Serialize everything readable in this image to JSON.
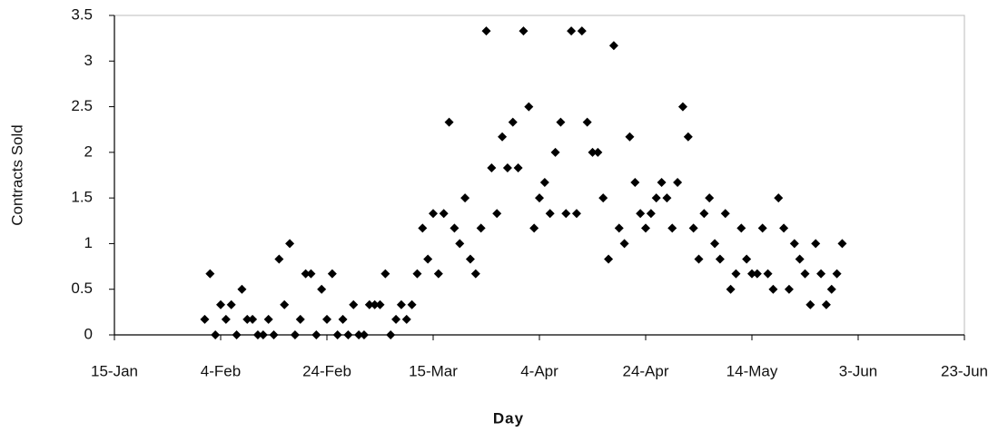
{
  "chart_data": {
    "type": "scatter",
    "xlabel": "Day",
    "ylabel": "Contracts Sold",
    "x": [
      32,
      33,
      34,
      35,
      36,
      37,
      38,
      39,
      40,
      41,
      42,
      43,
      44,
      45,
      46,
      47,
      48,
      49,
      50,
      51,
      52,
      53,
      54,
      55,
      56,
      57,
      58,
      59,
      60,
      61,
      62,
      63,
      64,
      65,
      66,
      67,
      68,
      69,
      70,
      71,
      72,
      73,
      74,
      75,
      76,
      77,
      78,
      79,
      80,
      81,
      82,
      83,
      84,
      85,
      86,
      87,
      88,
      89,
      90,
      91,
      92,
      93,
      94,
      95,
      96,
      97,
      98,
      99,
      100,
      101,
      102,
      103,
      104,
      105,
      106,
      107,
      108,
      109,
      110,
      111,
      112,
      113,
      114,
      115,
      116,
      117,
      118,
      119,
      120,
      121,
      122,
      123,
      124,
      125,
      126,
      127,
      128,
      129,
      130,
      131,
      132,
      133,
      134,
      135,
      136,
      137,
      138,
      139,
      140,
      141,
      142,
      143,
      144,
      145,
      146,
      147,
      148,
      149,
      150,
      151,
      152
    ],
    "values": [
      0.17,
      0.67,
      0,
      0.33,
      0.17,
      0.33,
      0,
      0.5,
      0.17,
      0.17,
      0,
      0,
      0.17,
      0,
      0.83,
      0.33,
      1,
      0,
      0.17,
      0.67,
      0.67,
      0,
      0.5,
      0.17,
      0.67,
      0,
      0.17,
      0,
      0.33,
      0,
      0,
      0.33,
      0.33,
      0.33,
      0.67,
      0,
      0.17,
      0.33,
      0.17,
      0.33,
      0.67,
      1.17,
      0.83,
      1.33,
      0.67,
      1.33,
      2.33,
      1.17,
      1,
      1.5,
      0.83,
      0.67,
      1.17,
      3.33,
      1.83,
      1.33,
      2.17,
      1.83,
      2.33,
      1.83,
      3.33,
      2.5,
      1.17,
      1.5,
      1.67,
      1.33,
      2,
      2.33,
      1.33,
      3.33,
      1.33,
      3.33,
      2.33,
      2,
      2,
      1.5,
      0.83,
      3.17,
      1.17,
      1,
      2.17,
      1.67,
      1.33,
      1.17,
      1.33,
      1.5,
      1.67,
      1.5,
      1.17,
      1.67,
      2.5,
      2.17,
      1.17,
      0.83,
      1.33,
      1.5,
      1,
      0.83,
      1.33,
      0.5,
      0.67,
      1.17,
      0.83,
      0.67,
      0.67,
      1.17,
      0.67,
      0.5,
      1.5,
      1.17,
      0.5,
      1,
      0.83,
      0.67,
      0.33,
      1,
      0.67,
      0.33,
      0.5,
      0.67,
      1
    ],
    "color": "#000000",
    "xlim": [
      15,
      175
    ],
    "xticks": [
      {
        "value": 15,
        "label": "15-Jan"
      },
      {
        "value": 35,
        "label": "4-Feb"
      },
      {
        "value": 55,
        "label": "24-Feb"
      },
      {
        "value": 75,
        "label": "15-Mar"
      },
      {
        "value": 95,
        "label": "4-Apr"
      },
      {
        "value": 115,
        "label": "24-Apr"
      },
      {
        "value": 135,
        "label": "14-May"
      },
      {
        "value": 155,
        "label": "3-Jun"
      },
      {
        "value": 175,
        "label": "23-Jun"
      }
    ],
    "ylim": [
      0,
      3.5
    ],
    "yticks": [
      0,
      0.5,
      1,
      1.5,
      2,
      2.5,
      3,
      3.5
    ],
    "grid": false
  }
}
